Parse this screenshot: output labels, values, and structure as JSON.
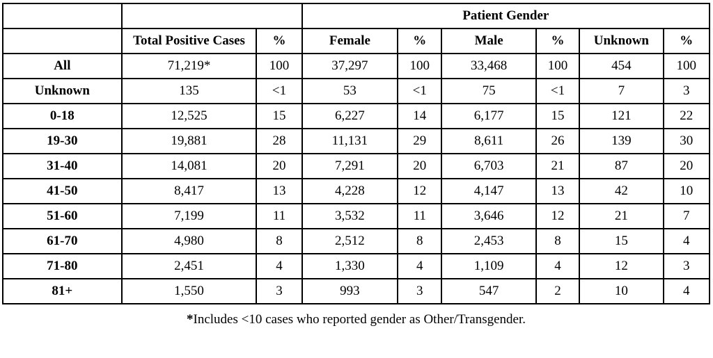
{
  "colors": {
    "background": "#ffffff",
    "border": "#000000",
    "text": "#000000"
  },
  "chart_data": {
    "type": "table",
    "gender_group_header": "Patient Gender",
    "columns": [
      "",
      "Total Positive Cases",
      "%",
      "Female",
      "%",
      "Male",
      "%",
      "Unknown",
      "%"
    ],
    "rows": [
      {
        "label": "All",
        "cells": [
          "71,219*",
          "100",
          "37,297",
          "100",
          "33,468",
          "100",
          "454",
          "100"
        ]
      },
      {
        "label": "Unknown",
        "cells": [
          "135",
          "<1",
          "53",
          "<1",
          "75",
          "<1",
          "7",
          "3"
        ]
      },
      {
        "label": "0-18",
        "cells": [
          "12,525",
          "15",
          "6,227",
          "14",
          "6,177",
          "15",
          "121",
          "22"
        ]
      },
      {
        "label": "19-30",
        "cells": [
          "19,881",
          "28",
          "11,131",
          "29",
          "8,611",
          "26",
          "139",
          "30"
        ]
      },
      {
        "label": "31-40",
        "cells": [
          "14,081",
          "20",
          "7,291",
          "20",
          "6,703",
          "21",
          "87",
          "20"
        ]
      },
      {
        "label": "41-50",
        "cells": [
          "8,417",
          "13",
          "4,228",
          "12",
          "4,147",
          "13",
          "42",
          "10"
        ]
      },
      {
        "label": "51-60",
        "cells": [
          "7,199",
          "11",
          "3,532",
          "11",
          "3,646",
          "12",
          "21",
          "7"
        ]
      },
      {
        "label": "61-70",
        "cells": [
          "4,980",
          "8",
          "2,512",
          "8",
          "2,453",
          "8",
          "15",
          "4"
        ]
      },
      {
        "label": "71-80",
        "cells": [
          "2,451",
          "4",
          "1,330",
          "4",
          "1,109",
          "4",
          "12",
          "3"
        ]
      },
      {
        "label": "81+",
        "cells": [
          "1,550",
          "3",
          "993",
          "3",
          "547",
          "2",
          "10",
          "4"
        ]
      }
    ],
    "footnote_marker": "*",
    "footnote_text": "Includes <10 cases who reported gender as Other/Transgender."
  }
}
